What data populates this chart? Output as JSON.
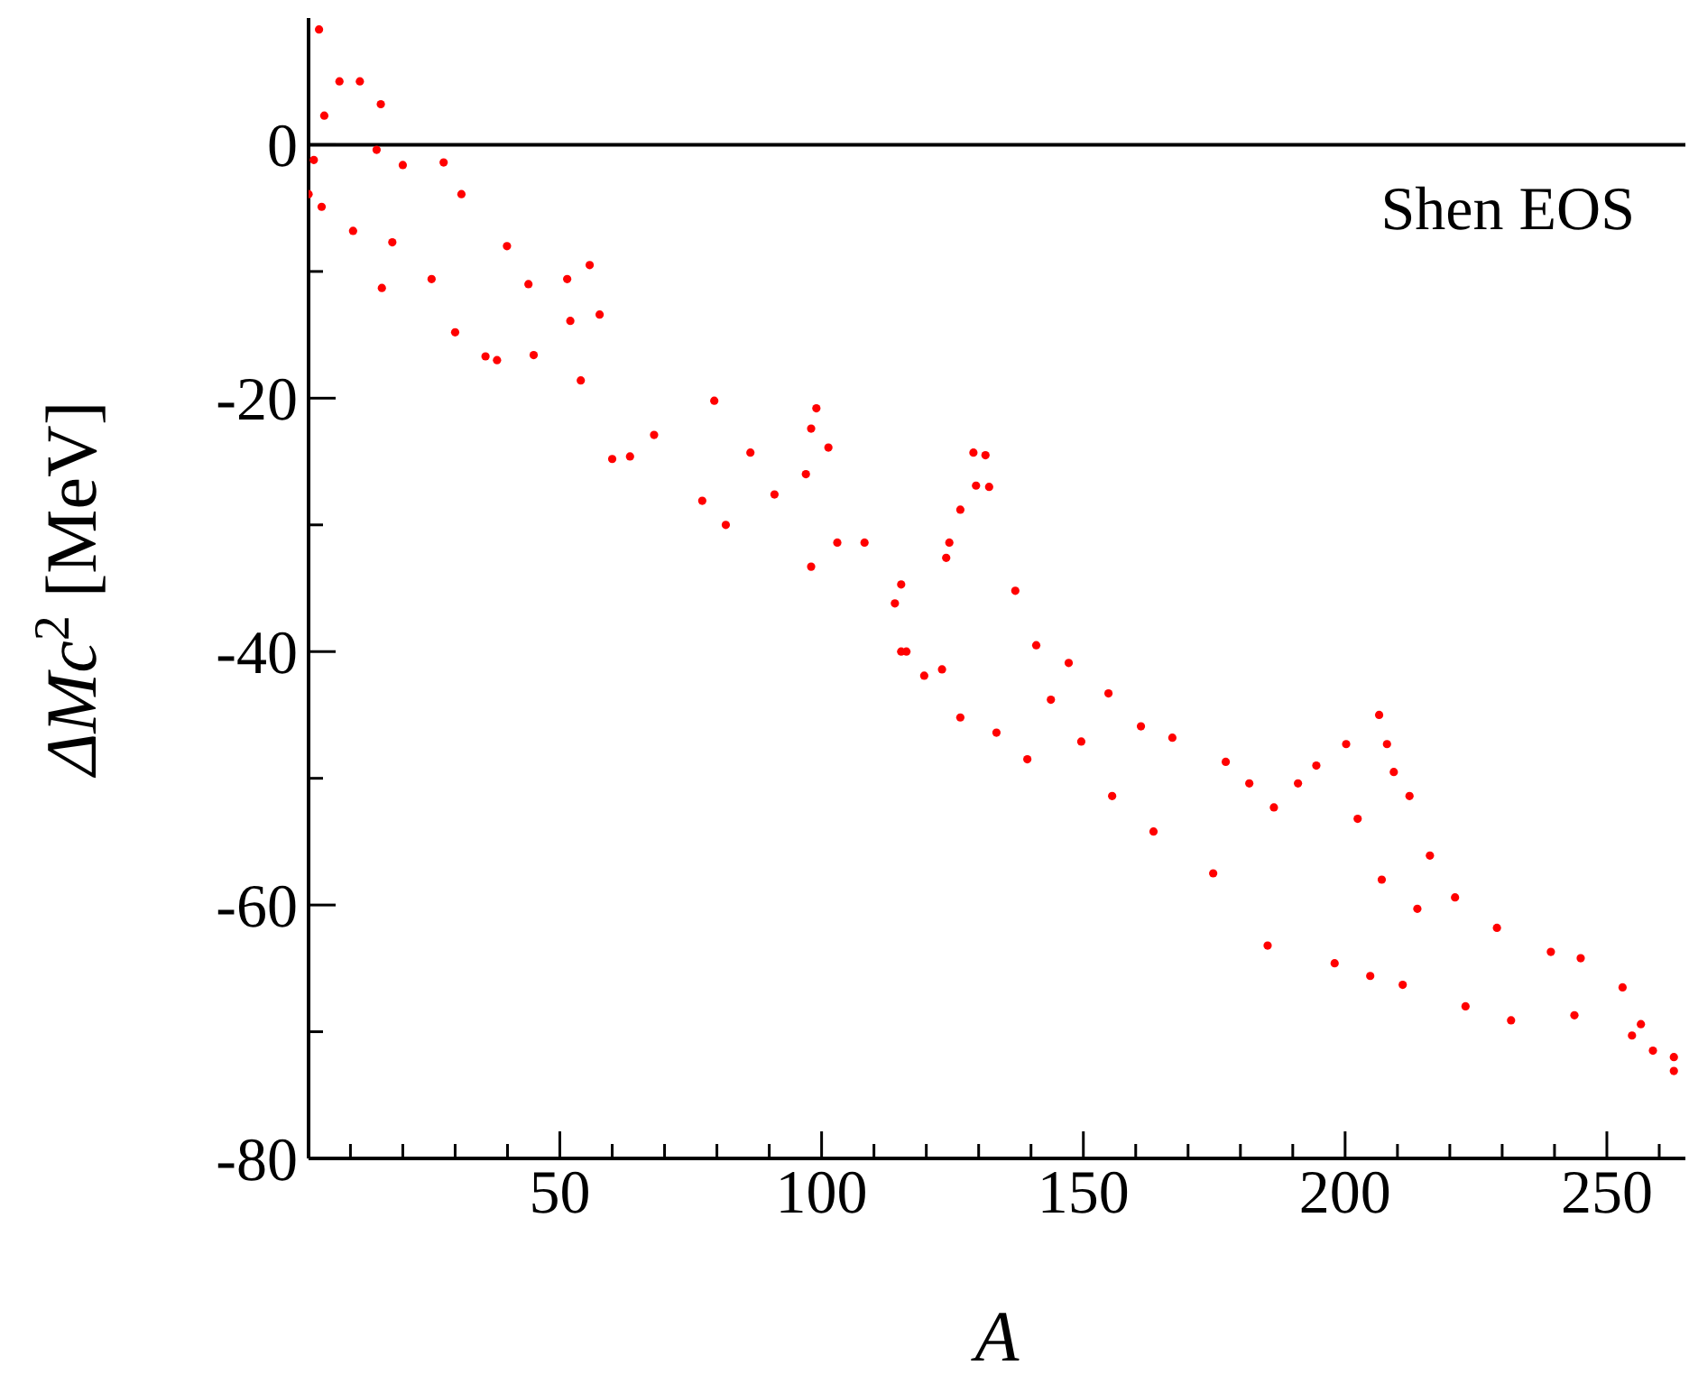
{
  "chart_data": {
    "type": "scatter",
    "xlabel": "A",
    "ylabel": "ΔMc$^{2}$ [MeV]",
    "annotations": [
      "Shen EOS"
    ],
    "xlim": [
      2,
      265
    ],
    "ylim": [
      -80,
      10
    ],
    "xticks": [
      {
        "value": 10,
        "label": null
      },
      {
        "value": 20,
        "label": null
      },
      {
        "value": 30,
        "label": null
      },
      {
        "value": 40,
        "label": null
      },
      50,
      {
        "value": 60,
        "label": null
      },
      {
        "value": 70,
        "label": null
      },
      {
        "value": 80,
        "label": null
      },
      {
        "value": 90,
        "label": null
      },
      100,
      {
        "value": 110,
        "label": null
      },
      {
        "value": 120,
        "label": null
      },
      {
        "value": 130,
        "label": null
      },
      {
        "value": 140,
        "label": null
      },
      150,
      {
        "value": 160,
        "label": null
      },
      {
        "value": 170,
        "label": null
      },
      {
        "value": 180,
        "label": null
      },
      {
        "value": 190,
        "label": null
      },
      200,
      {
        "value": 210,
        "label": null
      },
      {
        "value": 220,
        "label": null
      },
      {
        "value": 230,
        "label": null
      },
      {
        "value": 240,
        "label": null
      },
      250,
      {
        "value": 260,
        "label": null
      }
    ],
    "yticks": [
      -80,
      {
        "value": -70,
        "label": null
      },
      -60,
      {
        "value": -50,
        "label": null
      },
      -40,
      {
        "value": -30,
        "label": null
      },
      -20,
      {
        "value": -10,
        "label": null
      },
      0
    ],
    "ref_lines": [
      {
        "axis": "y",
        "value": 0,
        "color": "#000000"
      }
    ],
    "marker": "circle",
    "grid": false,
    "legend": false,
    "series": [
      {
        "color": "#ff0000",
        "x": [
          4,
          7.9,
          11.8,
          2,
          3,
          5,
          15.8,
          15,
          4.5,
          10.5,
          16,
          20,
          27.8,
          18,
          25.5,
          31.2,
          39.9,
          30,
          35.8,
          38,
          44,
          51.4,
          55.7,
          45,
          52,
          57.6,
          54,
          60,
          63.4,
          79.5,
          68,
          77.2,
          81.7,
          86.4,
          99,
          98,
          101.3,
          97,
          91,
          98,
          103,
          108.2,
          114,
          116.2,
          123,
          129,
          124.4,
          131.3,
          129.5,
          132,
          126.5,
          123.8,
          115.2,
          115.2,
          137,
          141,
          147.2,
          154.8,
          139.3,
          133.4,
          126.5,
          119.6,
          161,
          167,
          177.2,
          181.7,
          155.5,
          163.4,
          174.8,
          185.2,
          198,
          204.8,
          211,
          194.5,
          200.2,
          206.5,
          208,
          209.3,
          212.3,
          216.2,
          221,
          229,
          239.3,
          245,
          253,
          256.5,
          258.8,
          262.8,
          262.8,
          223,
          231.7,
          243.8,
          254.8,
          186.4,
          191,
          202.4,
          207,
          213.8,
          149.6,
          143.8
        ],
        "values": [
          9.1,
          5,
          5,
          -3.9,
          -1.2,
          2.3,
          3.2,
          -0.4,
          -4.9,
          -6.8,
          -11.3,
          -1.6,
          -1.4,
          -7.7,
          -10.6,
          -3.9,
          -8,
          -14.8,
          -16.7,
          -17,
          -11,
          -10.6,
          -9.5,
          -16.6,
          -13.9,
          -13.4,
          -18.6,
          -24.8,
          -24.6,
          -20.2,
          -22.9,
          -28.1,
          -30,
          -24.3,
          -20.8,
          -22.4,
          -23.9,
          -26,
          -27.6,
          -33.3,
          -31.4,
          -31.4,
          -36.2,
          -40,
          -41.4,
          -24.3,
          -31.4,
          -24.5,
          -26.9,
          -27,
          -28.8,
          -32.6,
          -34.7,
          -40,
          -35.2,
          -39.5,
          -40.9,
          -43.3,
          -48.5,
          -46.4,
          -45.2,
          -41.9,
          -45.9,
          -46.8,
          -48.7,
          -50.4,
          -51.4,
          -54.2,
          -57.5,
          -63.2,
          -64.6,
          -65.6,
          -66.3,
          -49,
          -47.3,
          -45,
          -47.3,
          -49.5,
          -51.4,
          -56.1,
          -59.4,
          -61.8,
          -63.7,
          -64.2,
          -66.5,
          -69.4,
          -71.5,
          -72,
          -73.1,
          -68,
          -69.1,
          -68.7,
          -70.3,
          -52.3,
          -50.4,
          -53.2,
          -58,
          -60.3,
          -47.1,
          -43.8
        ]
      }
    ]
  }
}
